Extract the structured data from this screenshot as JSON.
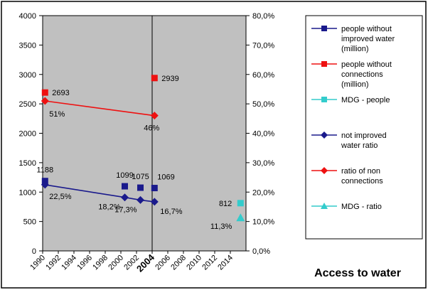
{
  "chart_data": {
    "type": "line",
    "title": "Access to water",
    "x_range": [
      1990,
      2016
    ],
    "x_tick_labels": [
      "1990",
      "1992",
      "1994",
      "1996",
      "1998",
      "2000",
      "2002",
      "2004",
      "2006",
      "2008",
      "2010",
      "2012",
      "2014"
    ],
    "highlight_year": 2004,
    "y_left": {
      "range": [
        0,
        4000
      ],
      "tick_labels": [
        "0",
        "500",
        "1000",
        "1500",
        "2000",
        "2500",
        "3000",
        "3500",
        "4000"
      ]
    },
    "y_right": {
      "range": [
        0,
        80
      ],
      "tick_labels": [
        "0,0%",
        "10,0%",
        "20,0%",
        "30,0%",
        "40,0%",
        "50,0%",
        "60,0%",
        "70,0%",
        "80,0%"
      ]
    },
    "grid": false,
    "legend_position": "right",
    "series": [
      {
        "name": "people without improved water (million)",
        "legend_lines": [
          "people without",
          "improved water",
          "(million)"
        ],
        "axis": "left",
        "marker": "square",
        "line": false,
        "color": "#1a1a8c",
        "points": [
          {
            "x": 1990.3,
            "y": 1188,
            "label": "1188"
          },
          {
            "x": 2000.5,
            "y": 1099,
            "label": "1099"
          },
          {
            "x": 2002.5,
            "y": 1075,
            "label": "1075"
          },
          {
            "x": 2004.3,
            "y": 1069,
            "label": "1069"
          }
        ]
      },
      {
        "name": "people without connections (million)",
        "legend_lines": [
          "people without",
          "connections",
          "(million)"
        ],
        "axis": "left",
        "marker": "square",
        "line": false,
        "color": "#ee1111",
        "points": [
          {
            "x": 1990.3,
            "y": 2693,
            "label": "2693"
          },
          {
            "x": 2004.3,
            "y": 2939,
            "label": "2939"
          }
        ]
      },
      {
        "name": "MDG - people",
        "legend_lines": [
          "MDG - people"
        ],
        "axis": "left",
        "marker": "square",
        "line": false,
        "color": "#33cccc",
        "points": [
          {
            "x": 2015.3,
            "y": 812,
            "label": "812"
          }
        ]
      },
      {
        "name": "not improved water ratio",
        "legend_lines": [
          "not improved",
          "water ratio"
        ],
        "axis": "right",
        "marker": "diamond",
        "line": true,
        "color": "#1a1a8c",
        "points": [
          {
            "x": 1990.3,
            "y": 22.5,
            "label": "22,5%"
          },
          {
            "x": 2000.5,
            "y": 18.2,
            "label": "18,2%"
          },
          {
            "x": 2002.5,
            "y": 17.3,
            "label": "17,3%"
          },
          {
            "x": 2004.3,
            "y": 16.7,
            "label": "16,7%"
          }
        ]
      },
      {
        "name": "ratio of non connections",
        "legend_lines": [
          "ratio of non",
          "connections"
        ],
        "axis": "right",
        "marker": "diamond",
        "line": true,
        "color": "#ee1111",
        "points": [
          {
            "x": 1990.3,
            "y": 51,
            "label": "51%"
          },
          {
            "x": 2004.3,
            "y": 46,
            "label": "46%"
          }
        ]
      },
      {
        "name": "MDG - ratio",
        "legend_lines": [
          "MDG - ratio"
        ],
        "axis": "right",
        "marker": "triangle",
        "line": false,
        "color": "#33cccc",
        "points": [
          {
            "x": 2015.3,
            "y": 11.3,
            "label": "11,3%"
          }
        ]
      }
    ]
  }
}
